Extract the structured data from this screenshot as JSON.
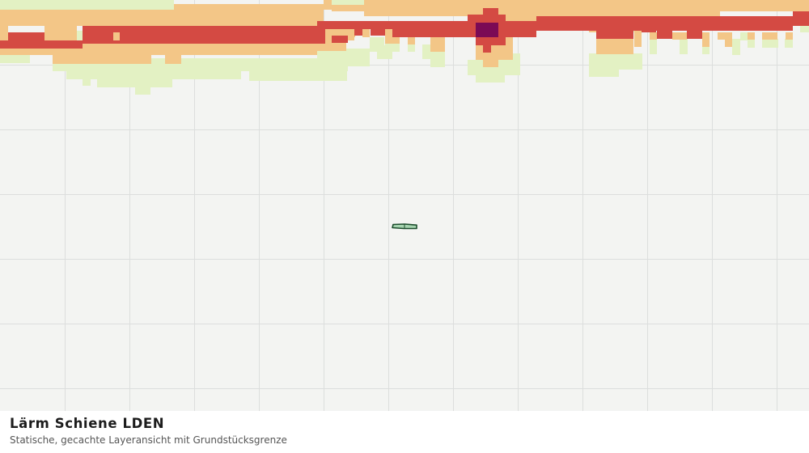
{
  "layer": {
    "title": "Lärm Schiene LDEN",
    "subtitle": "Statische, gecachte Layeransicht mit Grundstücksgrenze"
  },
  "colors": {
    "background": "#f3f4f2",
    "grid": "#dcdedd",
    "noise_low": "#e3f1c3",
    "noise_medium": "#f3c687",
    "noise_high": "#d44a43",
    "noise_very_high": "#7b0a55",
    "parcel_fill": "#a6d4b0",
    "parcel_stroke": "#1d4e2e"
  },
  "icons": {
    "parcel": "parcel-boundary-icon"
  }
}
